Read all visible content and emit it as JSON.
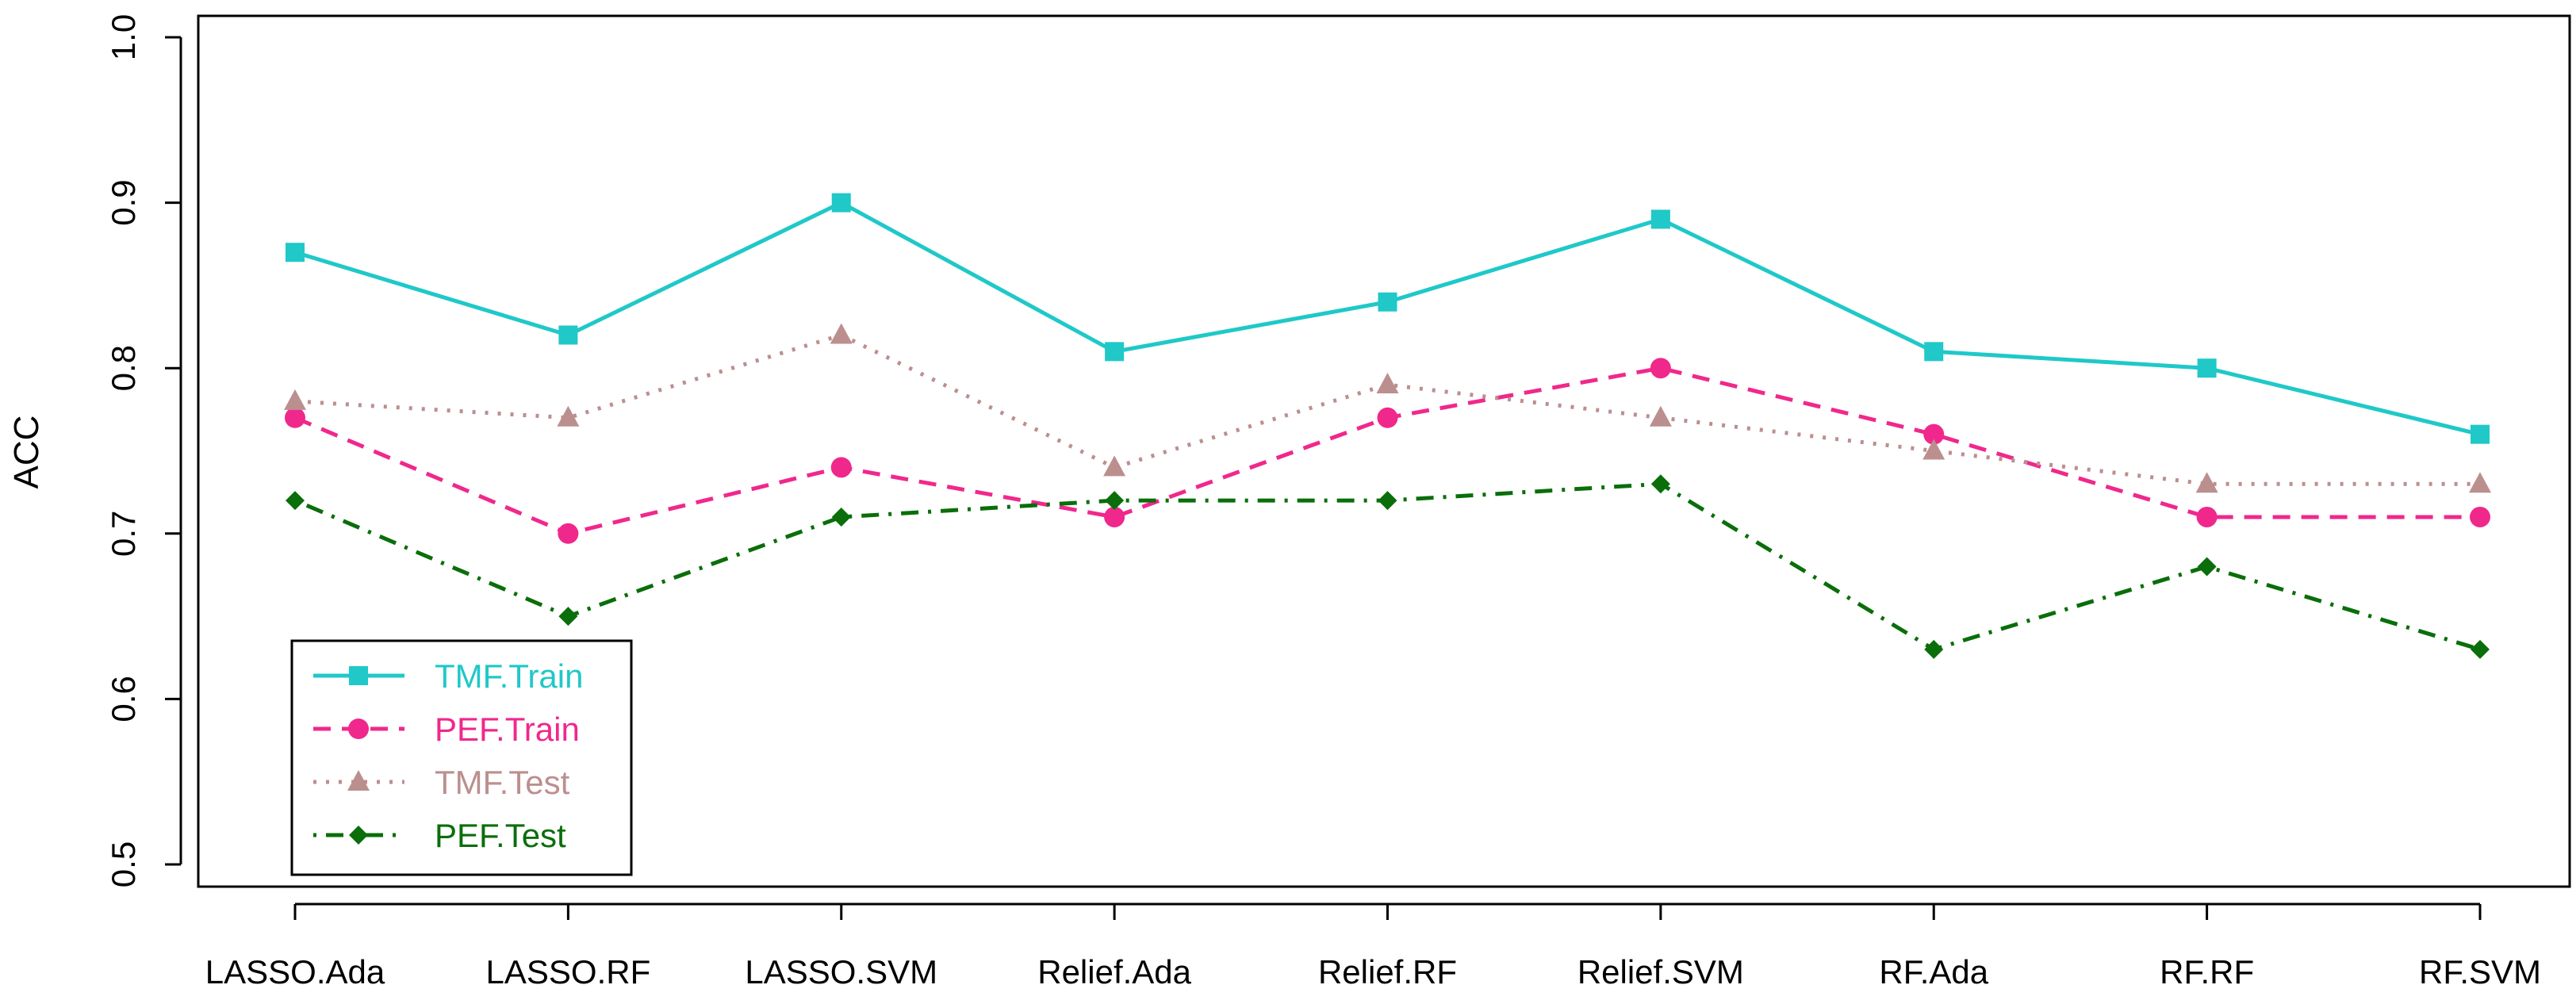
{
  "chart_data": {
    "type": "line",
    "title": "",
    "xlabel": "",
    "ylabel": "ACC",
    "ylim": [
      0.5,
      1.0
    ],
    "yticks": [
      "0.5",
      "0.6",
      "0.7",
      "0.8",
      "0.9",
      "1.0"
    ],
    "categories": [
      "LASSO.Ada",
      "LASSO.RF",
      "LASSO.SVM",
      "Relief.Ada",
      "Relief.RF",
      "Relief.SVM",
      "RF.Ada",
      "RF.RF",
      "RF.SVM"
    ],
    "legend_position": "bottom-left",
    "grid": false,
    "series": [
      {
        "name": "TMF.Train",
        "color": "#20c8c8",
        "linestyle": "solid",
        "marker": "square",
        "values": [
          0.87,
          0.82,
          0.9,
          0.81,
          0.84,
          0.89,
          0.81,
          0.8,
          0.76
        ]
      },
      {
        "name": "PEF.Train",
        "color": "#f0288c",
        "linestyle": "dashed",
        "marker": "circle",
        "values": [
          0.77,
          0.7,
          0.74,
          0.71,
          0.77,
          0.8,
          0.76,
          0.71,
          0.71
        ]
      },
      {
        "name": "TMF.Test",
        "color": "#bc8f8f",
        "linestyle": "dotted",
        "marker": "triangle",
        "values": [
          0.78,
          0.77,
          0.82,
          0.74,
          0.79,
          0.77,
          0.75,
          0.73,
          0.73
        ]
      },
      {
        "name": "PEF.Test",
        "color": "#0a6e0a",
        "linestyle": "dashdot",
        "marker": "diamond",
        "values": [
          0.72,
          0.65,
          0.71,
          0.72,
          0.72,
          0.73,
          0.63,
          0.68,
          0.63
        ]
      }
    ]
  }
}
